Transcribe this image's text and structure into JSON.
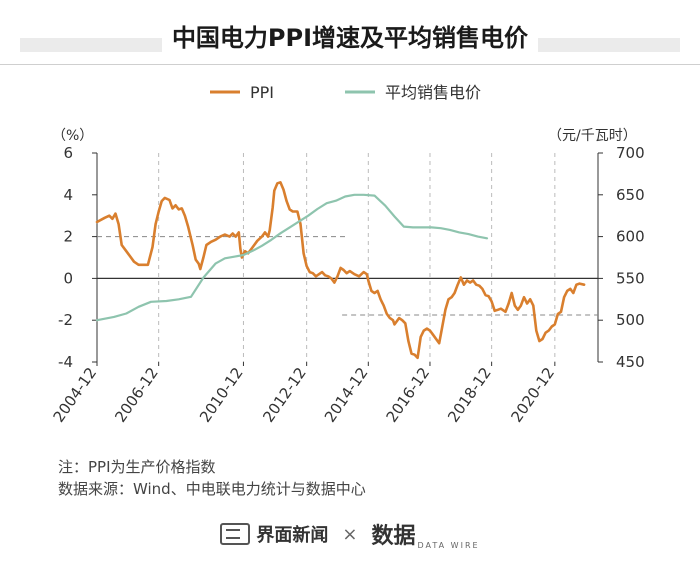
{
  "title": "中国电力PPI增速及平均销售电价",
  "notes": {
    "line1": "注：PPI为生产价格指数",
    "line2": "数据来源：Wind、中电联电力统计与数据中心"
  },
  "footer": {
    "brand1": "界面新闻",
    "times": "×",
    "brand2": "数据",
    "brand2_sub": "DATA WIRE"
  },
  "colors": {
    "ppi": "#d97f2e",
    "price": "#8ec4ae",
    "axis": "#333333",
    "dash": "#888888"
  },
  "chart_data": {
    "type": "line",
    "legend": [
      "PPI",
      "平均销售电价"
    ],
    "legend_position": "top-center",
    "left_axis": {
      "unit": "（%）",
      "min": -4,
      "max": 6,
      "ticks": [
        6,
        4,
        2,
        0,
        -2,
        -4
      ]
    },
    "right_axis": {
      "unit": "（元/千瓦时）",
      "min": 450,
      "max": 700,
      "ticks": [
        700,
        650,
        600,
        550,
        500,
        450
      ]
    },
    "x_ticks": [
      "2004-12",
      "2006-12",
      "2010-12",
      "2012-12",
      "2014-12",
      "2016-12",
      "2018-12",
      "2020-12"
    ],
    "x_tick_positions": [
      2004.95,
      2006.95,
      2009.7,
      2011.75,
      2013.75,
      2015.75,
      2017.75,
      2019.8
    ],
    "x_range": [
      2004.95,
      2021.2
    ],
    "reference_lines": [
      {
        "axis": "left",
        "value": 2,
        "from": 2004.95,
        "to": 2013.0,
        "style": "dashed"
      },
      {
        "axis": "left",
        "value": -1.75,
        "from": 2012.9,
        "to": 2021.2,
        "style": "dashed"
      }
    ],
    "series": [
      {
        "name": "PPI",
        "axis": "left",
        "points": [
          [
            2004.95,
            2.7
          ],
          [
            2005.2,
            2.9
          ],
          [
            2005.35,
            3.0
          ],
          [
            2005.45,
            2.85
          ],
          [
            2005.55,
            3.1
          ],
          [
            2005.65,
            2.6
          ],
          [
            2005.75,
            1.6
          ],
          [
            2005.9,
            1.3
          ],
          [
            2006.0,
            1.1
          ],
          [
            2006.15,
            0.8
          ],
          [
            2006.3,
            0.65
          ],
          [
            2006.45,
            0.65
          ],
          [
            2006.6,
            0.65
          ],
          [
            2006.75,
            1.5
          ],
          [
            2006.85,
            2.6
          ],
          [
            2006.95,
            3.2
          ],
          [
            2007.05,
            3.7
          ],
          [
            2007.15,
            3.85
          ],
          [
            2007.3,
            3.75
          ],
          [
            2007.4,
            3.35
          ],
          [
            2007.5,
            3.5
          ],
          [
            2007.6,
            3.3
          ],
          [
            2007.7,
            3.35
          ],
          [
            2007.8,
            3.0
          ],
          [
            2007.9,
            2.5
          ],
          [
            2008.05,
            1.6
          ],
          [
            2008.15,
            0.9
          ],
          [
            2008.25,
            0.7
          ],
          [
            2008.3,
            0.45
          ],
          [
            2008.4,
            1.0
          ],
          [
            2008.5,
            1.6
          ],
          [
            2008.65,
            1.75
          ],
          [
            2008.8,
            1.85
          ],
          [
            2008.95,
            2.0
          ],
          [
            2009.1,
            2.1
          ],
          [
            2009.25,
            2.0
          ],
          [
            2009.35,
            2.15
          ],
          [
            2009.45,
            2.0
          ],
          [
            2009.55,
            2.2
          ],
          [
            2009.6,
            1.4
          ],
          [
            2009.65,
            1.0
          ],
          [
            2009.75,
            1.3
          ],
          [
            2009.85,
            1.2
          ],
          [
            2010.0,
            1.5
          ],
          [
            2010.15,
            1.8
          ],
          [
            2010.3,
            2.0
          ],
          [
            2010.4,
            2.2
          ],
          [
            2010.5,
            2.0
          ],
          [
            2010.55,
            2.3
          ],
          [
            2010.65,
            3.4
          ],
          [
            2010.7,
            4.2
          ],
          [
            2010.8,
            4.55
          ],
          [
            2010.9,
            4.6
          ],
          [
            2011.0,
            4.25
          ],
          [
            2011.1,
            3.7
          ],
          [
            2011.2,
            3.3
          ],
          [
            2011.3,
            3.2
          ],
          [
            2011.45,
            3.2
          ],
          [
            2011.55,
            2.6
          ],
          [
            2011.65,
            1.2
          ],
          [
            2011.75,
            0.6
          ],
          [
            2011.85,
            0.3
          ],
          [
            2011.95,
            0.25
          ],
          [
            2012.05,
            0.1
          ],
          [
            2012.15,
            0.2
          ],
          [
            2012.25,
            0.3
          ],
          [
            2012.35,
            0.15
          ],
          [
            2012.45,
            0.1
          ],
          [
            2012.55,
            0.0
          ],
          [
            2012.65,
            -0.2
          ],
          [
            2012.75,
            0.1
          ],
          [
            2012.85,
            0.5
          ],
          [
            2012.95,
            0.4
          ],
          [
            2013.05,
            0.25
          ],
          [
            2013.15,
            0.35
          ],
          [
            2013.3,
            0.2
          ],
          [
            2013.45,
            0.1
          ],
          [
            2013.6,
            0.3
          ],
          [
            2013.7,
            0.2
          ],
          [
            2013.75,
            -0.1
          ],
          [
            2013.85,
            -0.6
          ],
          [
            2013.95,
            -0.7
          ],
          [
            2014.05,
            -0.6
          ],
          [
            2014.15,
            -1.0
          ],
          [
            2014.25,
            -1.3
          ],
          [
            2014.35,
            -1.7
          ],
          [
            2014.45,
            -1.9
          ],
          [
            2014.55,
            -2.0
          ],
          [
            2014.6,
            -2.2
          ],
          [
            2014.75,
            -1.9
          ],
          [
            2014.85,
            -2.0
          ],
          [
            2014.95,
            -2.15
          ],
          [
            2015.05,
            -3.0
          ],
          [
            2015.15,
            -3.6
          ],
          [
            2015.25,
            -3.65
          ],
          [
            2015.35,
            -3.8
          ],
          [
            2015.45,
            -2.8
          ],
          [
            2015.55,
            -2.5
          ],
          [
            2015.65,
            -2.4
          ],
          [
            2015.75,
            -2.5
          ],
          [
            2015.85,
            -2.7
          ],
          [
            2015.95,
            -2.9
          ],
          [
            2016.05,
            -3.1
          ],
          [
            2016.15,
            -2.3
          ],
          [
            2016.25,
            -1.5
          ],
          [
            2016.35,
            -1.0
          ],
          [
            2016.45,
            -0.9
          ],
          [
            2016.55,
            -0.7
          ],
          [
            2016.65,
            -0.3
          ],
          [
            2016.75,
            0.05
          ],
          [
            2016.85,
            -0.3
          ],
          [
            2016.95,
            -0.1
          ],
          [
            2017.05,
            -0.2
          ],
          [
            2017.15,
            -0.1
          ],
          [
            2017.25,
            -0.3
          ],
          [
            2017.35,
            -0.35
          ],
          [
            2017.45,
            -0.5
          ],
          [
            2017.55,
            -0.8
          ],
          [
            2017.65,
            -0.85
          ],
          [
            2017.75,
            -1.1
          ],
          [
            2017.85,
            -1.55
          ],
          [
            2017.95,
            -1.5
          ],
          [
            2018.05,
            -1.45
          ],
          [
            2018.2,
            -1.6
          ],
          [
            2018.3,
            -1.2
          ],
          [
            2018.4,
            -0.7
          ],
          [
            2018.5,
            -1.3
          ],
          [
            2018.6,
            -1.5
          ],
          [
            2018.7,
            -1.3
          ],
          [
            2018.8,
            -0.9
          ],
          [
            2018.9,
            -1.2
          ],
          [
            2019.0,
            -1.0
          ],
          [
            2019.1,
            -1.3
          ],
          [
            2019.2,
            -2.5
          ],
          [
            2019.3,
            -3.0
          ],
          [
            2019.4,
            -2.9
          ],
          [
            2019.5,
            -2.6
          ],
          [
            2019.6,
            -2.5
          ],
          [
            2019.7,
            -2.3
          ],
          [
            2019.8,
            -2.2
          ],
          [
            2019.9,
            -1.7
          ],
          [
            2020.0,
            -1.6
          ],
          [
            2020.1,
            -0.9
          ],
          [
            2020.2,
            -0.6
          ],
          [
            2020.3,
            -0.5
          ],
          [
            2020.4,
            -0.7
          ],
          [
            2020.5,
            -0.3
          ],
          [
            2020.6,
            -0.25
          ],
          [
            2020.75,
            -0.3
          ]
        ]
      },
      {
        "name": "平均销售电价",
        "axis": "right",
        "points": [
          [
            2004.95,
            500
          ],
          [
            2005.5,
            504
          ],
          [
            2005.9,
            508
          ],
          [
            2006.3,
            516
          ],
          [
            2006.7,
            522
          ],
          [
            2007.2,
            523
          ],
          [
            2007.6,
            525
          ],
          [
            2008.0,
            528
          ],
          [
            2008.4,
            551
          ],
          [
            2008.8,
            568
          ],
          [
            2009.1,
            574
          ],
          [
            2009.4,
            576
          ],
          [
            2009.7,
            578
          ],
          [
            2010.0,
            583
          ],
          [
            2010.3,
            589
          ],
          [
            2010.6,
            596
          ],
          [
            2010.9,
            604
          ],
          [
            2011.2,
            611
          ],
          [
            2011.5,
            618
          ],
          [
            2011.8,
            625
          ],
          [
            2012.1,
            633
          ],
          [
            2012.4,
            640
          ],
          [
            2012.7,
            643
          ],
          [
            2013.0,
            648
          ],
          [
            2013.3,
            650
          ],
          [
            2013.6,
            650
          ],
          [
            2013.95,
            649
          ],
          [
            2014.3,
            637
          ],
          [
            2014.6,
            624
          ],
          [
            2014.9,
            612
          ],
          [
            2015.2,
            611
          ],
          [
            2015.5,
            611
          ],
          [
            2015.8,
            611
          ],
          [
            2016.1,
            610
          ],
          [
            2016.4,
            608
          ],
          [
            2016.7,
            605
          ],
          [
            2017.0,
            603
          ],
          [
            2017.3,
            600
          ],
          [
            2017.6,
            598
          ]
        ]
      }
    ]
  }
}
